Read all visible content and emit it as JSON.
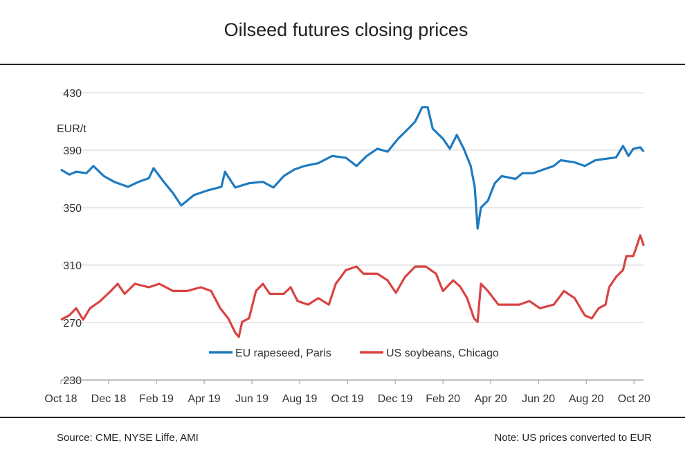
{
  "chart_data": {
    "type": "line",
    "title": "Oilseed futures closing prices",
    "ylabel": "EUR/t",
    "xlabel": "",
    "ylim": [
      230,
      430
    ],
    "yticks": [
      430,
      390,
      350,
      310,
      270,
      230
    ],
    "x_unit": "months since Oct 18",
    "xlim": [
      0,
      24.4
    ],
    "xtick_labels": [
      "Oct 18",
      "Dec 18",
      "Feb 19",
      "Apr 19",
      "Jun 19",
      "Aug 19",
      "Oct 19",
      "Dec 19",
      "Feb 20",
      "Apr 20",
      "Jun 20",
      "Aug 20",
      "Oct 20"
    ],
    "grid": true,
    "legend_position": "bottom-center",
    "series": [
      {
        "name": "EU rapeseed, Paris",
        "color": "#1f7bc0",
        "points": [
          [
            0,
            376.5
          ],
          [
            0.35,
            373
          ],
          [
            0.64,
            375
          ],
          [
            1.07,
            374
          ],
          [
            1.36,
            379
          ],
          [
            1.8,
            372
          ],
          [
            2.23,
            368
          ],
          [
            2.81,
            364.5
          ],
          [
            3.25,
            368
          ],
          [
            3.68,
            370.5
          ],
          [
            3.88,
            377.5
          ],
          [
            4.26,
            369
          ],
          [
            4.7,
            360
          ],
          [
            5.04,
            351.5
          ],
          [
            5.57,
            358.7
          ],
          [
            6.14,
            362
          ],
          [
            6.72,
            364.5
          ],
          [
            6.87,
            375
          ],
          [
            7.3,
            364
          ],
          [
            7.88,
            367
          ],
          [
            8.46,
            368
          ],
          [
            8.9,
            364
          ],
          [
            9.33,
            372
          ],
          [
            9.77,
            376.5
          ],
          [
            10.2,
            379
          ],
          [
            10.78,
            381
          ],
          [
            11.36,
            386
          ],
          [
            11.94,
            384.7
          ],
          [
            12.38,
            379
          ],
          [
            12.81,
            386
          ],
          [
            13.25,
            391
          ],
          [
            13.68,
            389
          ],
          [
            14.12,
            398
          ],
          [
            14.55,
            405
          ],
          [
            14.84,
            410
          ],
          [
            15.13,
            420
          ],
          [
            15.36,
            420
          ],
          [
            15.57,
            405
          ],
          [
            16,
            398
          ],
          [
            16.29,
            391
          ],
          [
            16.58,
            400.6
          ],
          [
            16.87,
            391
          ],
          [
            17.16,
            379
          ],
          [
            17.33,
            364.5
          ],
          [
            17.45,
            335.5
          ],
          [
            17.59,
            350
          ],
          [
            17.88,
            354.8
          ],
          [
            18.17,
            367
          ],
          [
            18.46,
            372
          ],
          [
            18.75,
            371
          ],
          [
            19.04,
            370
          ],
          [
            19.33,
            374
          ],
          [
            19.77,
            374
          ],
          [
            20.2,
            376.5
          ],
          [
            20.64,
            379
          ],
          [
            20.93,
            383
          ],
          [
            21.51,
            381.5
          ],
          [
            21.94,
            379
          ],
          [
            22.38,
            383
          ],
          [
            22.81,
            384
          ],
          [
            23.25,
            385
          ],
          [
            23.54,
            393
          ],
          [
            23.77,
            386
          ],
          [
            23.97,
            391
          ],
          [
            24.26,
            392
          ],
          [
            24.41,
            389
          ]
        ]
      },
      {
        "name": "US soybeans, Chicago",
        "color": "#d94343",
        "points": [
          [
            0,
            272
          ],
          [
            0.35,
            275
          ],
          [
            0.64,
            280
          ],
          [
            0.93,
            272
          ],
          [
            1.22,
            280
          ],
          [
            1.65,
            285
          ],
          [
            2.09,
            292
          ],
          [
            2.38,
            297
          ],
          [
            2.67,
            290
          ],
          [
            3.1,
            297
          ],
          [
            3.68,
            294.6
          ],
          [
            4.12,
            297
          ],
          [
            4.7,
            292
          ],
          [
            5.28,
            292
          ],
          [
            5.86,
            294.6
          ],
          [
            6.29,
            292
          ],
          [
            6.67,
            280
          ],
          [
            7.01,
            272.9
          ],
          [
            7.3,
            263
          ],
          [
            7.45,
            260
          ],
          [
            7.59,
            270.5
          ],
          [
            7.88,
            273
          ],
          [
            8.17,
            292
          ],
          [
            8.46,
            297
          ],
          [
            8.75,
            290
          ],
          [
            9.33,
            290
          ],
          [
            9.62,
            294.6
          ],
          [
            9.91,
            285
          ],
          [
            10.35,
            282.5
          ],
          [
            10.78,
            287
          ],
          [
            11.22,
            282.5
          ],
          [
            11.51,
            297
          ],
          [
            11.94,
            306.6
          ],
          [
            12.38,
            309
          ],
          [
            12.67,
            304
          ],
          [
            13.25,
            304
          ],
          [
            13.68,
            299.4
          ],
          [
            14.03,
            290.7
          ],
          [
            14.41,
            301.8
          ],
          [
            14.84,
            309
          ],
          [
            15.28,
            309
          ],
          [
            15.71,
            304
          ],
          [
            16,
            292
          ],
          [
            16.43,
            299.4
          ],
          [
            16.72,
            295
          ],
          [
            17.01,
            287
          ],
          [
            17.3,
            272.9
          ],
          [
            17.45,
            270.5
          ],
          [
            17.59,
            297
          ],
          [
            17.88,
            292
          ],
          [
            18.32,
            282.5
          ],
          [
            18.75,
            282.5
          ],
          [
            19.19,
            282.5
          ],
          [
            19.62,
            285
          ],
          [
            20.06,
            280
          ],
          [
            20.64,
            282.5
          ],
          [
            21.07,
            292
          ],
          [
            21.51,
            287
          ],
          [
            21.94,
            275
          ],
          [
            22.23,
            272.9
          ],
          [
            22.52,
            280
          ],
          [
            22.81,
            282.5
          ],
          [
            22.96,
            294.6
          ],
          [
            23.25,
            301.8
          ],
          [
            23.54,
            306.6
          ],
          [
            23.68,
            316.3
          ],
          [
            23.97,
            316.3
          ],
          [
            24.12,
            323.5
          ],
          [
            24.26,
            330.7
          ],
          [
            24.41,
            323.5
          ]
        ]
      }
    ]
  },
  "footer": {
    "source": "Source:  CME, NYSE Liffe, AMI",
    "note": "Note: US prices converted to EUR"
  }
}
